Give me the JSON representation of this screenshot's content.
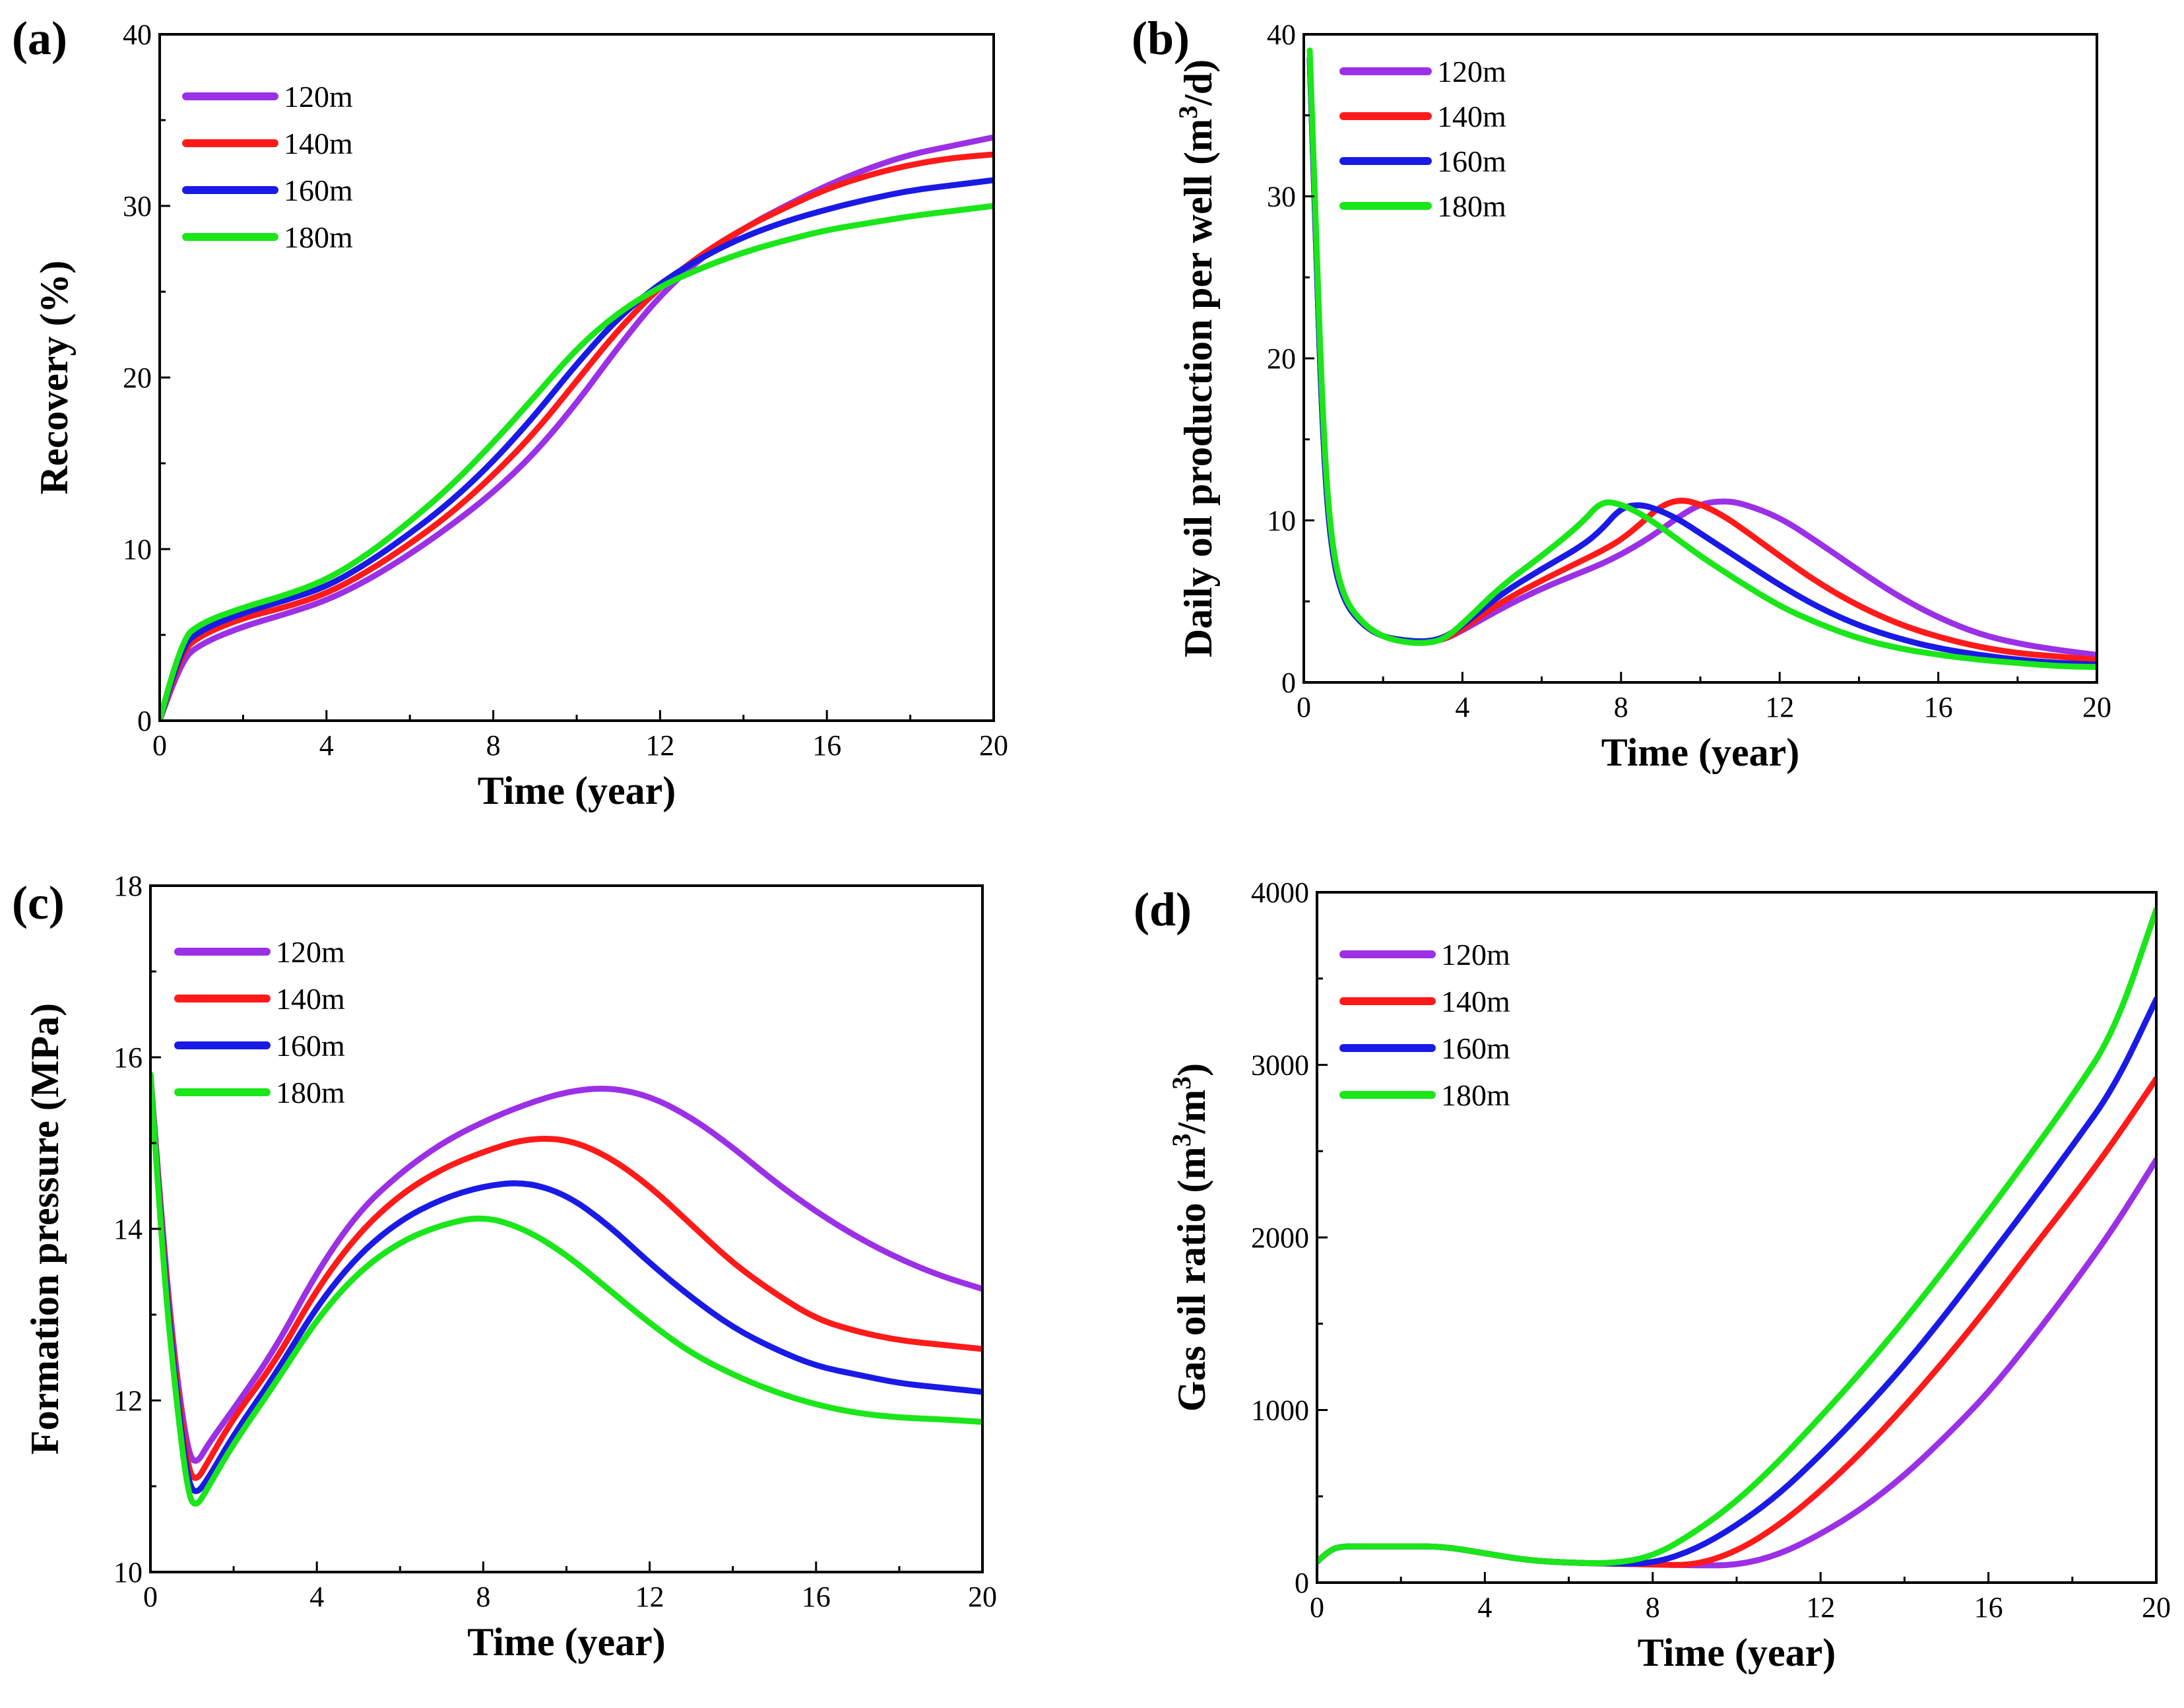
{
  "chart_data": [
    {
      "id": "a",
      "type": "line",
      "panel_label": "(a)",
      "xlabel": "Time (year)",
      "ylabel": "Recovery (%)",
      "ylabel_parts": [
        {
          "t": "Recovery (%)"
        }
      ],
      "xlim": [
        0,
        20
      ],
      "ylim": [
        0,
        40
      ],
      "xticks": [
        0,
        4,
        8,
        12,
        16,
        20
      ],
      "yticks": [
        0,
        10,
        20,
        30,
        40
      ],
      "legend_position": "top-left",
      "x": [
        0,
        0.5,
        1,
        2,
        3,
        4,
        5,
        6,
        7,
        8,
        9,
        10,
        11,
        12,
        13,
        14,
        15,
        16,
        17,
        18,
        19,
        20
      ],
      "series": [
        {
          "name": "120m",
          "color": "#9b30e6",
          "values": [
            0,
            3.5,
            4.5,
            5.5,
            6.2,
            7.0,
            8.2,
            9.7,
            11.4,
            13.3,
            15.6,
            18.5,
            21.8,
            24.8,
            27.0,
            28.7,
            30.0,
            31.2,
            32.2,
            33.0,
            33.5,
            34.0
          ]
        },
        {
          "name": "140m",
          "color": "#ff1a1a",
          "values": [
            0,
            4.0,
            5.0,
            6.0,
            6.6,
            7.4,
            8.7,
            10.3,
            12.1,
            14.3,
            16.8,
            19.8,
            22.8,
            25.3,
            27.2,
            28.7,
            29.9,
            31.0,
            31.8,
            32.4,
            32.8,
            33.0
          ]
        },
        {
          "name": "160m",
          "color": "#1a1ae6",
          "values": [
            0,
            4.3,
            5.3,
            6.3,
            7.0,
            7.8,
            9.2,
            10.9,
            12.8,
            15.1,
            17.8,
            20.8,
            23.5,
            25.5,
            27.0,
            28.2,
            29.1,
            29.8,
            30.4,
            30.9,
            31.2,
            31.5
          ]
        },
        {
          "name": "180m",
          "color": "#1ae61a",
          "values": [
            0,
            4.7,
            5.7,
            6.6,
            7.3,
            8.2,
            9.7,
            11.6,
            13.7,
            16.2,
            18.9,
            21.7,
            23.8,
            25.3,
            26.4,
            27.3,
            28.0,
            28.6,
            29.0,
            29.4,
            29.7,
            30.0
          ]
        }
      ]
    },
    {
      "id": "b",
      "type": "line",
      "panel_label": "(b)",
      "xlabel": "Time (year)",
      "ylabel": "Daily oil production per well (m3/d)",
      "ylabel_parts": [
        {
          "t": "Daily oil production per well (m"
        },
        {
          "t": "3",
          "sup": true
        },
        {
          "t": "/d)"
        }
      ],
      "xlim": [
        0,
        20
      ],
      "ylim": [
        0,
        40
      ],
      "xticks": [
        0,
        4,
        8,
        12,
        16,
        20
      ],
      "yticks": [
        0,
        10,
        20,
        30,
        40
      ],
      "legend_position": "top-left",
      "x": [
        0.15,
        0.3,
        0.5,
        0.7,
        1,
        1.5,
        2,
        2.5,
        3,
        3.5,
        4,
        5,
        6,
        7,
        7.5,
        8,
        8.5,
        9,
        9.5,
        10,
        10.5,
        11,
        12,
        13,
        14,
        15,
        16,
        17,
        18,
        19,
        20
      ],
      "series": [
        {
          "name": "120m",
          "color": "#9b30e6",
          "values": [
            38.5,
            27,
            14,
            8,
            5,
            3.5,
            2.8,
            2.6,
            2.5,
            2.6,
            3.2,
            4.6,
            5.8,
            6.8,
            7.3,
            7.9,
            8.6,
            9.4,
            10.3,
            11.0,
            11.2,
            11.1,
            10.2,
            8.6,
            6.9,
            5.3,
            4.0,
            3.0,
            2.4,
            2.0,
            1.7
          ]
        },
        {
          "name": "140m",
          "color": "#ff1a1a",
          "values": [
            38.5,
            27,
            14,
            8,
            5,
            3.5,
            2.8,
            2.6,
            2.5,
            2.6,
            3.3,
            5.0,
            6.3,
            7.5,
            8.1,
            8.8,
            9.8,
            10.9,
            11.3,
            11.0,
            10.4,
            9.6,
            7.8,
            6.1,
            4.7,
            3.6,
            2.8,
            2.2,
            1.8,
            1.6,
            1.4
          ]
        },
        {
          "name": "160m",
          "color": "#1a1ae6",
          "values": [
            38.5,
            27,
            14,
            8,
            5,
            3.5,
            2.8,
            2.6,
            2.5,
            2.7,
            3.5,
            5.5,
            7.0,
            8.4,
            9.4,
            10.8,
            11.0,
            10.6,
            10.0,
            9.2,
            8.4,
            7.6,
            6.0,
            4.6,
            3.5,
            2.7,
            2.1,
            1.7,
            1.4,
            1.2,
            1.1
          ]
        },
        {
          "name": "180m",
          "color": "#1ae61a",
          "values": [
            39.0,
            28,
            15,
            8.5,
            5.2,
            3.6,
            2.8,
            2.5,
            2.4,
            2.6,
            3.6,
            6.0,
            7.8,
            9.8,
            11.2,
            11.0,
            10.4,
            9.6,
            8.7,
            7.8,
            7.0,
            6.2,
            4.7,
            3.6,
            2.7,
            2.1,
            1.7,
            1.4,
            1.2,
            1.0,
            0.95
          ]
        }
      ]
    },
    {
      "id": "c",
      "type": "line",
      "panel_label": "(c)",
      "xlabel": "Time (year)",
      "ylabel": "Formation pressure (MPa)",
      "ylabel_parts": [
        {
          "t": "Formation pressure (MPa)"
        }
      ],
      "xlim": [
        0,
        20
      ],
      "ylim": [
        10,
        18
      ],
      "xticks": [
        0,
        4,
        8,
        12,
        16,
        20
      ],
      "yticks": [
        10,
        12,
        14,
        16,
        18
      ],
      "legend_position": "top-left",
      "x": [
        0,
        0.3,
        0.6,
        0.9,
        1.1,
        1.4,
        2,
        3,
        4,
        5,
        6,
        7,
        8,
        9,
        10,
        11,
        12,
        13,
        14,
        15,
        16,
        17,
        18,
        19,
        20
      ],
      "series": [
        {
          "name": "120m",
          "color": "#9b30e6",
          "values": [
            15.8,
            13.9,
            12.4,
            11.4,
            11.25,
            11.5,
            11.9,
            12.6,
            13.5,
            14.2,
            14.65,
            15.0,
            15.25,
            15.45,
            15.6,
            15.65,
            15.55,
            15.3,
            14.95,
            14.55,
            14.2,
            13.9,
            13.65,
            13.45,
            13.3
          ]
        },
        {
          "name": "140m",
          "color": "#ff1a1a",
          "values": [
            15.8,
            13.8,
            12.3,
            11.2,
            11.05,
            11.3,
            11.8,
            12.45,
            13.3,
            13.95,
            14.4,
            14.7,
            14.9,
            15.05,
            15.05,
            14.85,
            14.5,
            14.05,
            13.6,
            13.25,
            12.95,
            12.8,
            12.7,
            12.65,
            12.6
          ]
        },
        {
          "name": "160m",
          "color": "#1a1ae6",
          "values": [
            15.8,
            13.7,
            12.2,
            11.05,
            10.9,
            11.1,
            11.6,
            12.3,
            13.1,
            13.7,
            14.1,
            14.35,
            14.5,
            14.55,
            14.4,
            14.05,
            13.6,
            13.2,
            12.85,
            12.6,
            12.4,
            12.3,
            12.2,
            12.15,
            12.1
          ]
        },
        {
          "name": "180m",
          "color": "#1ae61a",
          "values": [
            15.8,
            13.6,
            12.1,
            10.9,
            10.75,
            11.0,
            11.5,
            12.2,
            12.95,
            13.5,
            13.85,
            14.05,
            14.15,
            14.0,
            13.7,
            13.3,
            12.9,
            12.55,
            12.3,
            12.1,
            11.95,
            11.85,
            11.8,
            11.78,
            11.75
          ]
        }
      ]
    },
    {
      "id": "d",
      "type": "line",
      "panel_label": "(d)",
      "xlabel": "Time (year)",
      "ylabel": "Gas oil ratio (m3/m3)",
      "ylabel_parts": [
        {
          "t": "Gas oil ratio  (m"
        },
        {
          "t": "3",
          "sup": true
        },
        {
          "t": "/m"
        },
        {
          "t": "3",
          "sup": true
        },
        {
          "t": ")"
        }
      ],
      "xlim": [
        0,
        20
      ],
      "ylim": [
        0,
        4000
      ],
      "xticks": [
        0,
        4,
        8,
        12,
        16,
        20
      ],
      "yticks": [
        0,
        1000,
        2000,
        3000,
        4000
      ],
      "legend_position": "top-left",
      "x": [
        0,
        0.3,
        0.6,
        1,
        2,
        3,
        4,
        5,
        6,
        7,
        8,
        9,
        10,
        11,
        12,
        13,
        14,
        15,
        16,
        17,
        18,
        19,
        20
      ],
      "series": [
        {
          "name": "120m",
          "color": "#9b30e6",
          "values": [
            120,
            190,
            210,
            210,
            210,
            210,
            170,
            130,
            115,
            110,
            105,
            100,
            100,
            160,
            280,
            430,
            620,
            850,
            1100,
            1400,
            1720,
            2060,
            2450
          ]
        },
        {
          "name": "140m",
          "color": "#ff1a1a",
          "values": [
            120,
            190,
            210,
            210,
            210,
            210,
            170,
            130,
            115,
            110,
            105,
            100,
            180,
            330,
            530,
            760,
            1020,
            1300,
            1600,
            1920,
            2230,
            2560,
            2920
          ]
        },
        {
          "name": "160m",
          "color": "#1a1ae6",
          "values": [
            120,
            190,
            210,
            210,
            210,
            210,
            170,
            130,
            115,
            110,
            110,
            190,
            330,
            510,
            740,
            990,
            1260,
            1560,
            1880,
            2200,
            2530,
            2870,
            3380
          ]
        },
        {
          "name": "180m",
          "color": "#1ae61a",
          "values": [
            120,
            190,
            210,
            210,
            210,
            210,
            170,
            130,
            115,
            110,
            150,
            290,
            470,
            700,
            960,
            1230,
            1520,
            1830,
            2150,
            2480,
            2820,
            3190,
            3900
          ]
        }
      ]
    }
  ]
}
